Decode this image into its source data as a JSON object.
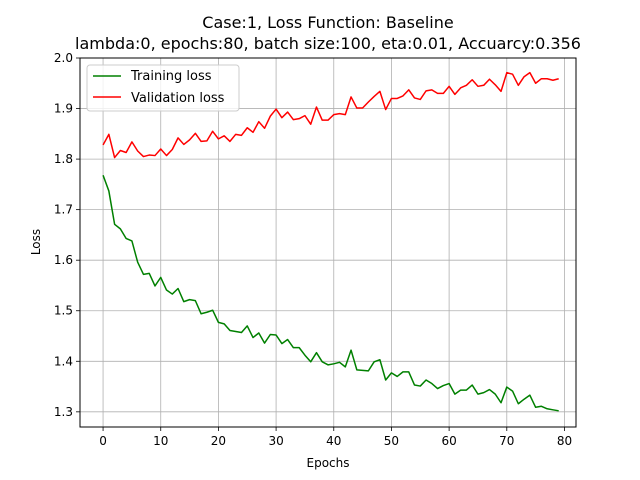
{
  "chart_data": {
    "type": "line",
    "title_line1": "Case:1, Loss Function: Baseline",
    "title_line2": "lambda:0, epochs:80, batch size:100, eta:0.01, Accuarcy:0.356",
    "xlabel": "Epochs",
    "ylabel": "Loss",
    "xlim": [
      -4,
      82
    ],
    "ylim": [
      1.27,
      2.0
    ],
    "xticks": [
      0,
      10,
      20,
      30,
      40,
      50,
      60,
      70,
      80
    ],
    "xtick_labels": [
      "0",
      "10",
      "20",
      "30",
      "40",
      "50",
      "60",
      "70",
      "80"
    ],
    "yticks": [
      1.3,
      1.4,
      1.5,
      1.6,
      1.7,
      1.8,
      1.9,
      2.0
    ],
    "ytick_labels": [
      "1.3",
      "1.4",
      "1.5",
      "1.6",
      "1.7",
      "1.8",
      "1.9",
      "2.0"
    ],
    "grid": true,
    "legend_position": "top-left",
    "series": [
      {
        "name": "Training loss",
        "color": "#008000",
        "values": [
          1.768,
          1.737,
          1.671,
          1.662,
          1.643,
          1.638,
          1.596,
          1.572,
          1.574,
          1.549,
          1.566,
          1.541,
          1.533,
          1.544,
          1.518,
          1.522,
          1.52,
          1.494,
          1.497,
          1.501,
          1.477,
          1.474,
          1.461,
          1.459,
          1.457,
          1.47,
          1.447,
          1.456,
          1.436,
          1.453,
          1.452,
          1.435,
          1.443,
          1.427,
          1.427,
          1.412,
          1.399,
          1.417,
          1.399,
          1.393,
          1.395,
          1.398,
          1.389,
          1.422,
          1.383,
          1.382,
          1.381,
          1.399,
          1.403,
          1.363,
          1.377,
          1.37,
          1.379,
          1.379,
          1.353,
          1.351,
          1.363,
          1.356,
          1.346,
          1.352,
          1.356,
          1.335,
          1.343,
          1.343,
          1.353,
          1.335,
          1.338,
          1.344,
          1.335,
          1.318,
          1.349,
          1.341,
          1.316,
          1.325,
          1.333,
          1.309,
          1.311,
          1.306,
          1.304,
          1.302
        ]
      },
      {
        "name": "Validation loss",
        "color": "#ff0000",
        "values": [
          1.828,
          1.849,
          1.803,
          1.817,
          1.813,
          1.834,
          1.816,
          1.805,
          1.808,
          1.807,
          1.82,
          1.807,
          1.819,
          1.842,
          1.829,
          1.838,
          1.851,
          1.835,
          1.836,
          1.855,
          1.84,
          1.846,
          1.835,
          1.849,
          1.847,
          1.862,
          1.853,
          1.874,
          1.861,
          1.885,
          1.899,
          1.882,
          1.893,
          1.878,
          1.88,
          1.886,
          1.869,
          1.903,
          1.877,
          1.877,
          1.888,
          1.89,
          1.888,
          1.923,
          1.901,
          1.901,
          1.913,
          1.924,
          1.934,
          1.898,
          1.92,
          1.92,
          1.925,
          1.937,
          1.921,
          1.918,
          1.935,
          1.937,
          1.93,
          1.93,
          1.944,
          1.928,
          1.941,
          1.946,
          1.957,
          1.944,
          1.946,
          1.958,
          1.947,
          1.934,
          1.971,
          1.968,
          1.946,
          1.963,
          1.971,
          1.95,
          1.959,
          1.959,
          1.956,
          1.959
        ]
      }
    ]
  }
}
